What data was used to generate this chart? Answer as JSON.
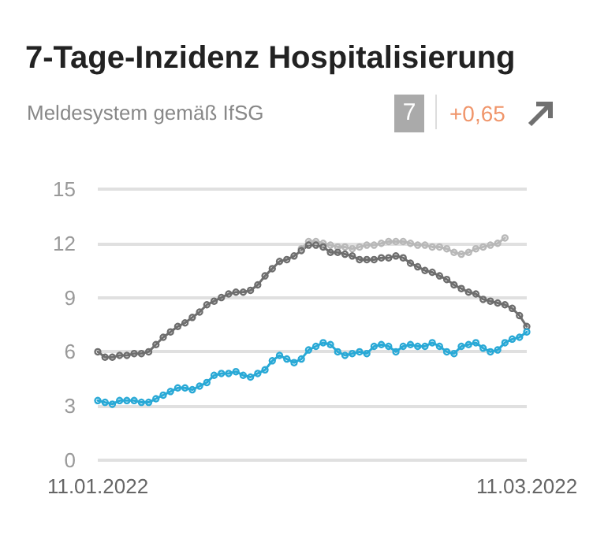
{
  "chart_data": {
    "type": "line",
    "title": "7-Tage-Inzidenz Hospitalisierung",
    "subtitle": "Meldesystem gemäß IfSG",
    "annotations": [
      "7",
      "+0,65"
    ],
    "x": [
      "2022-01-11",
      "2022-01-12",
      "2022-01-13",
      "2022-01-14",
      "2022-01-15",
      "2022-01-16",
      "2022-01-17",
      "2022-01-18",
      "2022-01-19",
      "2022-01-20",
      "2022-01-21",
      "2022-01-22",
      "2022-01-23",
      "2022-01-24",
      "2022-01-25",
      "2022-01-26",
      "2022-01-27",
      "2022-01-28",
      "2022-01-29",
      "2022-01-30",
      "2022-01-31",
      "2022-02-01",
      "2022-02-02",
      "2022-02-03",
      "2022-02-04",
      "2022-02-05",
      "2022-02-06",
      "2022-02-07",
      "2022-02-08",
      "2022-02-09",
      "2022-02-10",
      "2022-02-11",
      "2022-02-12",
      "2022-02-13",
      "2022-02-14",
      "2022-02-15",
      "2022-02-16",
      "2022-02-17",
      "2022-02-18",
      "2022-02-19",
      "2022-02-20",
      "2022-02-21",
      "2022-02-22",
      "2022-02-23",
      "2022-02-24",
      "2022-02-25",
      "2022-02-26",
      "2022-02-27",
      "2022-02-28",
      "2022-03-01",
      "2022-03-02",
      "2022-03-03",
      "2022-03-04",
      "2022-03-05",
      "2022-03-06",
      "2022-03-07",
      "2022-03-08",
      "2022-03-09",
      "2022-03-10",
      "2022-03-11"
    ],
    "series": [
      {
        "color": "#b8b8b8",
        "values": [
          null,
          null,
          null,
          null,
          null,
          null,
          null,
          null,
          null,
          null,
          null,
          null,
          null,
          null,
          null,
          null,
          null,
          null,
          null,
          null,
          null,
          null,
          null,
          null,
          null,
          null,
          null,
          null,
          11.7,
          12.1,
          12.1,
          12.0,
          11.9,
          11.8,
          11.8,
          11.7,
          11.8,
          11.9,
          11.9,
          12.0,
          12.1,
          12.1,
          12.1,
          12.0,
          11.9,
          11.9,
          11.8,
          11.8,
          11.7,
          11.5,
          11.4,
          11.5,
          11.7,
          11.8,
          11.9,
          12.0,
          12.3,
          null,
          null,
          null
        ]
      },
      {
        "color": "#6e6e6e",
        "values": [
          6.0,
          5.7,
          5.7,
          5.8,
          5.8,
          5.9,
          5.9,
          6.0,
          6.4,
          6.8,
          7.1,
          7.4,
          7.6,
          7.9,
          8.2,
          8.6,
          8.8,
          9.0,
          9.2,
          9.3,
          9.3,
          9.4,
          9.7,
          10.2,
          10.6,
          11.0,
          11.1,
          11.3,
          11.6,
          11.9,
          11.9,
          11.8,
          11.5,
          11.5,
          11.4,
          11.3,
          11.1,
          11.1,
          11.1,
          11.2,
          11.2,
          11.3,
          11.2,
          10.9,
          10.7,
          10.5,
          10.4,
          10.2,
          10.0,
          9.7,
          9.5,
          9.3,
          9.2,
          8.9,
          8.8,
          8.7,
          8.6,
          8.4,
          8.0,
          7.4
        ]
      },
      {
        "color": "#29a9d6",
        "values": [
          3.3,
          3.2,
          3.1,
          3.3,
          3.3,
          3.3,
          3.2,
          3.2,
          3.4,
          3.6,
          3.8,
          4.0,
          4.0,
          3.9,
          4.1,
          4.3,
          4.7,
          4.8,
          4.8,
          4.9,
          4.7,
          4.6,
          4.8,
          5.0,
          5.5,
          5.8,
          5.6,
          5.4,
          5.6,
          6.1,
          6.3,
          6.5,
          6.4,
          6.0,
          5.8,
          5.9,
          6.0,
          5.9,
          6.3,
          6.4,
          6.3,
          6.0,
          6.3,
          6.4,
          6.3,
          6.3,
          6.5,
          6.3,
          6.0,
          5.9,
          6.3,
          6.4,
          6.5,
          6.2,
          6.0,
          6.1,
          6.5,
          6.7,
          6.8,
          7.1
        ]
      }
    ],
    "xlim": [
      "2022-01-11",
      "2022-03-11"
    ],
    "xticks": [
      {
        "value": "2022-01-11",
        "label": "11.01.2022"
      },
      {
        "value": "2022-03-11",
        "label": "11.03.2022"
      }
    ],
    "ylim": [
      0,
      15
    ],
    "yticks": [
      0,
      3,
      6,
      9,
      12,
      15
    ],
    "grid": "y",
    "marker": "circle",
    "line_style": "solid"
  }
}
